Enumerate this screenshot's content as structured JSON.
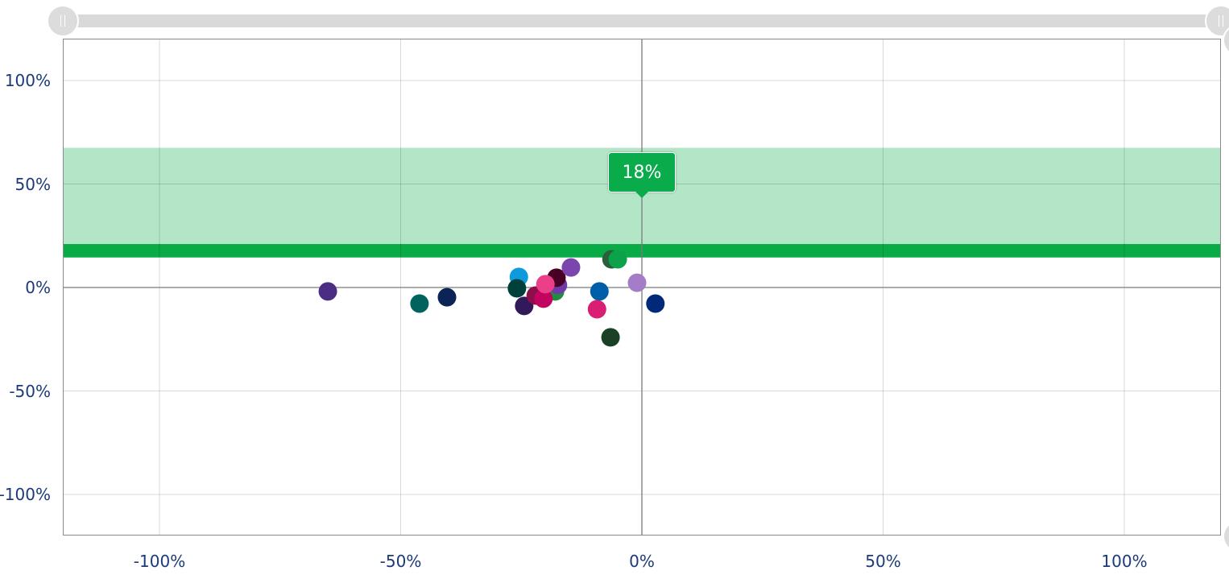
{
  "chart_data": {
    "type": "scatter",
    "title": "",
    "xlabel": "",
    "ylabel": "",
    "xlim": [
      -120,
      120
    ],
    "ylim": [
      -120,
      120
    ],
    "x_ticks": [
      "-100%",
      "-50%",
      "0%",
      "50%",
      "100%"
    ],
    "y_ticks": [
      "100%",
      "50%",
      "0%",
      "-50%",
      "-100%"
    ],
    "grid": true,
    "bands": [
      {
        "name": "range",
        "from": 21,
        "to": 67.5,
        "color": "#b3e5c7"
      },
      {
        "name": "target",
        "from": 14.5,
        "to": 21,
        "color": "#09ab47"
      }
    ],
    "tooltip": {
      "label": "18%",
      "x": 0,
      "y": 18
    },
    "points": [
      {
        "x": -65.1,
        "y": -1.9,
        "color": "#4b2e83"
      },
      {
        "x": -46.1,
        "y": -7.8,
        "color": "#00635e"
      },
      {
        "x": -40.4,
        "y": -4.7,
        "color": "#0a2456"
      },
      {
        "x": -25.5,
        "y": 5.1,
        "color": "#0f9bdb"
      },
      {
        "x": -25.9,
        "y": -0.4,
        "color": "#00403a"
      },
      {
        "x": -24.4,
        "y": -8.9,
        "color": "#321a5a"
      },
      {
        "x": -22.0,
        "y": -3.9,
        "color": "#8a0f4b"
      },
      {
        "x": -18.0,
        "y": -1.9,
        "color": "#1e8e3e"
      },
      {
        "x": -17.4,
        "y": 1.2,
        "color": "#6f3aa6"
      },
      {
        "x": -20.4,
        "y": -5.4,
        "color": "#c2035f"
      },
      {
        "x": -17.7,
        "y": 4.7,
        "color": "#4a0024"
      },
      {
        "x": -20.0,
        "y": 1.6,
        "color": "#ec3f8a"
      },
      {
        "x": -14.7,
        "y": 9.7,
        "color": "#7c45ae"
      },
      {
        "x": -8.8,
        "y": -1.9,
        "color": "#005ea8"
      },
      {
        "x": -9.3,
        "y": -10.5,
        "color": "#d81f74"
      },
      {
        "x": -6.3,
        "y": 13.6,
        "color": "#2b5e3a"
      },
      {
        "x": -5.0,
        "y": 13.6,
        "color": "#0ba24a"
      },
      {
        "x": -6.5,
        "y": -24.1,
        "color": "#1a4026"
      },
      {
        "x": -1.0,
        "y": 2.3,
        "color": "#a47cc8"
      },
      {
        "x": 2.8,
        "y": -7.8,
        "color": "#00297a"
      }
    ]
  }
}
